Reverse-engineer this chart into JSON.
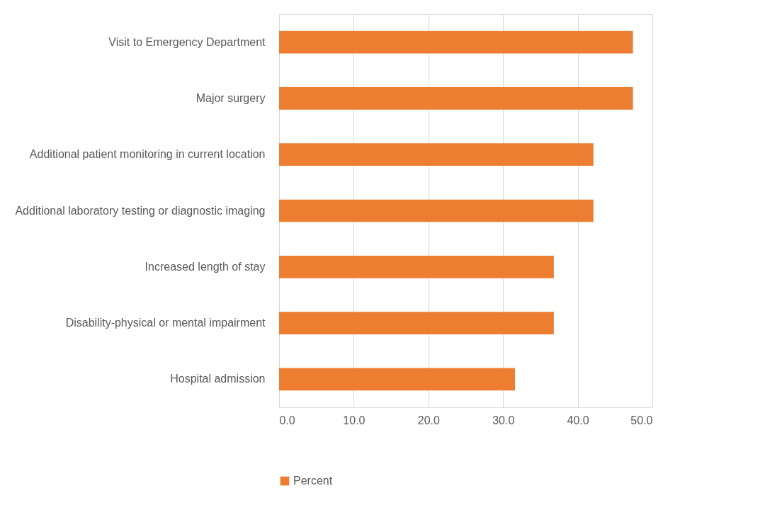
{
  "chart_data": {
    "type": "bar",
    "orientation": "horizontal",
    "categories": [
      "Visit to Emergency Department",
      "Major surgery",
      "Additional patient monitoring in current location",
      "Additional laboratory testing or diagnostic imaging",
      "Increased length of stay",
      "Disability-physical or mental impairment",
      "Hospital admission"
    ],
    "series": [
      {
        "name": "Percent",
        "color": "#ed7d31",
        "values": [
          47.4,
          47.4,
          42.1,
          42.1,
          36.8,
          36.8,
          31.6
        ]
      }
    ],
    "xlim": [
      0,
      50
    ],
    "xticks": [
      {
        "value": 0,
        "label": "0.0"
      },
      {
        "value": 10,
        "label": "10.0"
      },
      {
        "value": 20,
        "label": "20.0"
      },
      {
        "value": 30,
        "label": "30.0"
      },
      {
        "value": 40,
        "label": "40.0"
      },
      {
        "value": 50,
        "label": "50.0"
      }
    ],
    "grid": "x",
    "legend": "bottom"
  }
}
